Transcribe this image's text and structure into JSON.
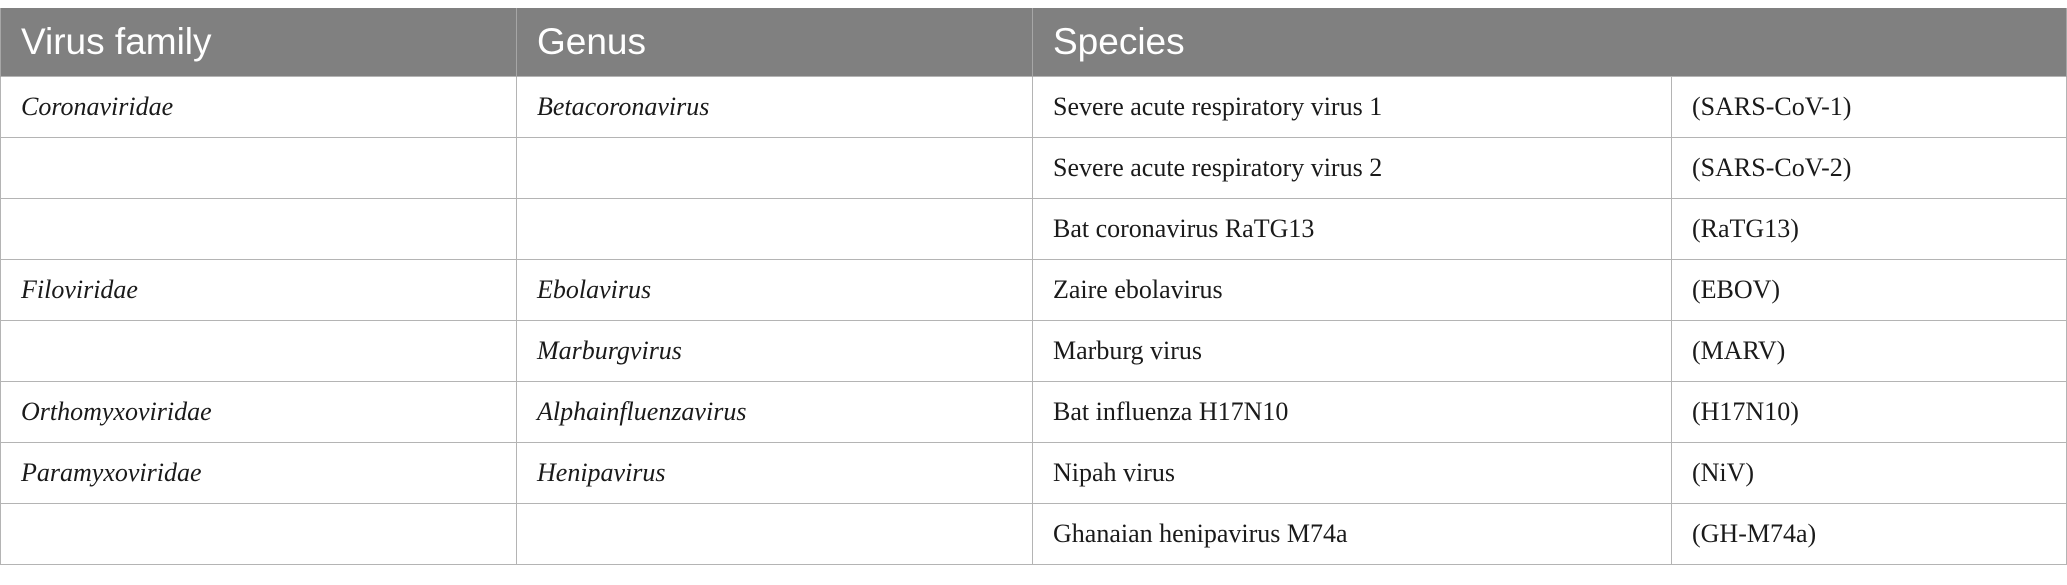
{
  "table": {
    "headers": [
      "Virus family",
      "Genus",
      "Species"
    ],
    "rows": [
      {
        "family": "Coronaviridae",
        "genus": "Betacoronavirus",
        "species": "Severe acute respiratory virus 1",
        "abbr": "(SARS-CoV-1)"
      },
      {
        "family": "",
        "genus": "",
        "species": "Severe acute respiratory virus 2",
        "abbr": "(SARS-CoV-2)"
      },
      {
        "family": "",
        "genus": "",
        "species": "Bat coronavirus RaTG13",
        "abbr": "(RaTG13)"
      },
      {
        "family": "Filoviridae",
        "genus": "Ebolavirus",
        "species": "Zaire ebolavirus",
        "abbr": "(EBOV)"
      },
      {
        "family": "",
        "genus": "Marburgvirus",
        "species": "Marburg virus",
        "abbr": "(MARV)"
      },
      {
        "family": "Orthomyxoviridae",
        "genus": "Alphainfluenzavirus",
        "species": "Bat influenza H17N10",
        "abbr": "(H17N10)"
      },
      {
        "family": "Paramyxoviridae",
        "genus": "Henipavirus",
        "species": "Nipah virus",
        "abbr": "(NiV)"
      },
      {
        "family": "",
        "genus": "",
        "species": "Ghanaian henipavirus M74a",
        "abbr": "(GH-M74a)"
      }
    ]
  },
  "colors": {
    "header_bg": "#808080",
    "header_text": "#ffffff",
    "border": "#b4b4b4"
  }
}
